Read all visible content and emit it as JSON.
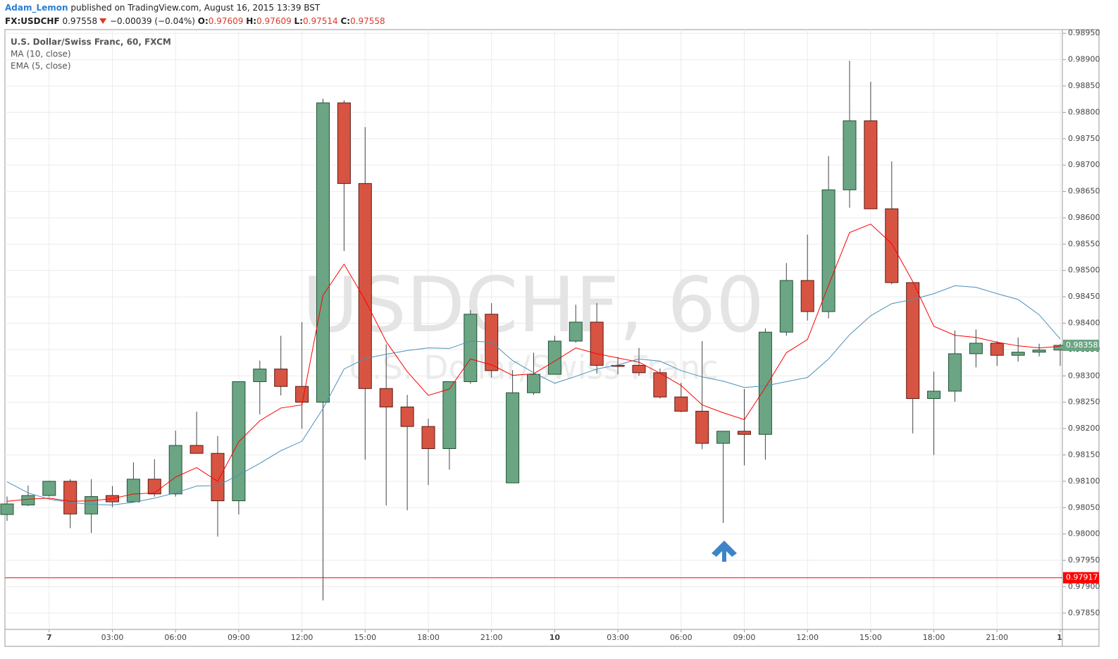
{
  "header": {
    "author": "Adam_Lemon",
    "published": "published on TradingView.com, August 16, 2015 13:39 BST",
    "symbol": "FX:USDCHF",
    "last": "0.97558",
    "change": "−0.00039 (−0.04%)",
    "open_label": "O:",
    "open": "0.97609",
    "high_label": "H:",
    "high": "0.97609",
    "low_label": "L:",
    "low": "0.97514",
    "close_label": "C:",
    "close": "0.97558"
  },
  "chart_data": {
    "type": "candlestick",
    "title": "U.S. Dollar/Swiss Franc, 60, FXCM",
    "watermark": "USDCHF, 60",
    "watermark_subtitle": "U.S. Dollar/Swiss Franc",
    "categories": [
      null,
      null,
      "7",
      null,
      null,
      "03:00",
      null,
      null,
      "06:00",
      null,
      null,
      "09:00",
      null,
      null,
      "12:00",
      null,
      null,
      "15:00",
      null,
      null,
      "18:00",
      null,
      null,
      "21:00",
      null,
      null,
      "10",
      null,
      null,
      "03:00",
      null,
      null,
      "06:00",
      null,
      null,
      "09:00",
      null,
      null,
      "12:00",
      null,
      null,
      "15:00",
      null,
      null,
      "18:00",
      null,
      null,
      "21:00",
      null,
      null,
      "1"
    ],
    "open": [
      0.98037,
      0.98055,
      0.98073,
      0.981,
      0.98038,
      0.98073,
      0.98061,
      0.98104,
      0.98076,
      0.98168,
      0.98153,
      0.98063,
      0.98289,
      0.98313,
      0.9828,
      0.9825,
      0.98818,
      0.98665,
      0.98276,
      0.98241,
      0.98204,
      0.98162,
      0.98289,
      0.98417,
      0.98097,
      0.98268,
      0.98303,
      0.98366,
      0.98402,
      0.9832,
      0.9832,
      0.98306,
      0.9826,
      0.98233,
      0.98172,
      0.98195,
      0.98189,
      0.98383,
      0.98481,
      0.98422,
      0.98653,
      0.98784,
      0.98617,
      0.98477,
      0.98257,
      0.98271,
      0.98342,
      0.98362,
      0.98339,
      0.98345,
      0.98349
    ],
    "high": [
      0.98071,
      0.98092,
      0.98101,
      0.98104,
      0.98104,
      0.98091,
      0.98136,
      0.98142,
      0.98196,
      0.98232,
      0.98186,
      0.98289,
      0.98329,
      0.98376,
      0.98402,
      0.98826,
      0.98823,
      0.98772,
      0.9836,
      0.98264,
      0.98219,
      0.98289,
      0.98425,
      0.98438,
      0.98311,
      0.98344,
      0.98376,
      0.98435,
      0.98438,
      0.98336,
      0.98353,
      0.98314,
      0.98287,
      0.98366,
      0.98195,
      0.98275,
      0.9839,
      0.98514,
      0.98568,
      0.98717,
      0.98898,
      0.98858,
      0.98707,
      0.98477,
      0.98308,
      0.98386,
      0.98388,
      0.98366,
      0.98373,
      0.98361,
      0.98361
    ],
    "low": [
      0.98025,
      0.98053,
      0.98071,
      0.98011,
      0.98002,
      0.98051,
      0.9806,
      0.98071,
      0.98071,
      0.98153,
      0.97995,
      0.98037,
      0.98227,
      0.98263,
      0.982,
      0.97874,
      0.98537,
      0.98141,
      0.98054,
      0.98045,
      0.98093,
      0.98122,
      0.98285,
      0.98297,
      0.98097,
      0.98264,
      0.98303,
      0.98363,
      0.98304,
      0.98303,
      0.983,
      0.98257,
      0.98231,
      0.98161,
      0.98021,
      0.9813,
      0.98141,
      0.98376,
      0.98405,
      0.98409,
      0.98619,
      0.98617,
      0.98474,
      0.98191,
      0.9815,
      0.98251,
      0.98316,
      0.98319,
      0.98327,
      0.98337,
      0.98319
    ],
    "close": [
      0.98057,
      0.98073,
      0.981,
      0.98038,
      0.98071,
      0.98061,
      0.98104,
      0.98076,
      0.98168,
      0.98153,
      0.98063,
      0.98289,
      0.98313,
      0.9828,
      0.9825,
      0.98818,
      0.98665,
      0.98276,
      0.98241,
      0.98204,
      0.98162,
      0.98289,
      0.98417,
      0.9831,
      0.98268,
      0.98303,
      0.98366,
      0.98402,
      0.9832,
      0.98318,
      0.98306,
      0.9826,
      0.98233,
      0.98172,
      0.98195,
      0.98189,
      0.98383,
      0.98481,
      0.98422,
      0.98653,
      0.98784,
      0.98617,
      0.98477,
      0.98257,
      0.98271,
      0.98342,
      0.98362,
      0.98339,
      0.98345,
      0.98349,
      0.98358
    ],
    "up_color": "#6ba583",
    "down_color": "#d75442",
    "series": [
      {
        "name": "MA (10, close)",
        "color": "#4a90b8",
        "values": [
          0.98099,
          0.98078,
          0.98066,
          0.9806,
          0.98056,
          0.98055,
          0.9806,
          0.98068,
          0.98078,
          0.98091,
          0.98092,
          0.98112,
          0.98134,
          0.98158,
          0.98176,
          0.98238,
          0.98313,
          0.98333,
          0.98341,
          0.98348,
          0.98353,
          0.98352,
          0.98366,
          0.98364,
          0.98329,
          0.98306,
          0.98286,
          0.98299,
          0.98313,
          0.98321,
          0.98332,
          0.98328,
          0.9831,
          0.98298,
          0.9829,
          0.98278,
          0.98281,
          0.98289,
          0.98297,
          0.98332,
          0.98378,
          0.98414,
          0.98437,
          0.98445,
          0.98456,
          0.98471,
          0.98468,
          0.98456,
          0.98445,
          0.98416,
          0.9837
        ]
      },
      {
        "name": "EMA (5, close)",
        "color": "#ff0000",
        "values": [
          0.98062,
          0.98066,
          0.98068,
          0.98062,
          0.98063,
          0.98067,
          0.98076,
          0.98078,
          0.98108,
          0.98126,
          0.981,
          0.98175,
          0.98215,
          0.98239,
          0.98245,
          0.98453,
          0.98512,
          0.98444,
          0.98365,
          0.98308,
          0.98263,
          0.98275,
          0.98332,
          0.98321,
          0.98301,
          0.98304,
          0.98328,
          0.98353,
          0.98342,
          0.98334,
          0.98326,
          0.98305,
          0.98282,
          0.98245,
          0.9823,
          0.98217,
          0.98278,
          0.98344,
          0.98369,
          0.98472,
          0.98572,
          0.98588,
          0.98551,
          0.98479,
          0.98394,
          0.98377,
          0.98373,
          0.98364,
          0.98357,
          0.98353,
          0.98356
        ]
      }
    ],
    "ylim": [
      0.97819,
      0.98957
    ],
    "yticks": [
      {
        "value": 0.9785,
        "label": "0.97850"
      },
      {
        "value": 0.979,
        "label": "0.97900"
      },
      {
        "value": 0.9795,
        "label": "0.97950"
      },
      {
        "value": 0.98,
        "label": "0.98000"
      },
      {
        "value": 0.9805,
        "label": "0.98050"
      },
      {
        "value": 0.981,
        "label": "0.98100"
      },
      {
        "value": 0.9815,
        "label": "0.98150"
      },
      {
        "value": 0.982,
        "label": "0.98200"
      },
      {
        "value": 0.9825,
        "label": "0.98250"
      },
      {
        "value": 0.983,
        "label": "0.98300"
      },
      {
        "value": 0.9835,
        "label": "0.98350"
      },
      {
        "value": 0.984,
        "label": "0.98400"
      },
      {
        "value": 0.9845,
        "label": "0.98450"
      },
      {
        "value": 0.985,
        "label": "0.98500"
      },
      {
        "value": 0.9855,
        "label": "0.98550"
      },
      {
        "value": 0.986,
        "label": "0.98600"
      },
      {
        "value": 0.9865,
        "label": "0.98650"
      },
      {
        "value": 0.987,
        "label": "0.98700"
      },
      {
        "value": 0.9875,
        "label": "0.98750"
      },
      {
        "value": 0.988,
        "label": "0.98800"
      },
      {
        "value": 0.9885,
        "label": "0.98850"
      },
      {
        "value": 0.989,
        "label": "0.98900"
      },
      {
        "value": 0.9895,
        "label": "0.98950"
      }
    ],
    "grid": true,
    "last_price": 0.98358,
    "price_line": 0.97917,
    "price_line_color": "#ff0000"
  }
}
